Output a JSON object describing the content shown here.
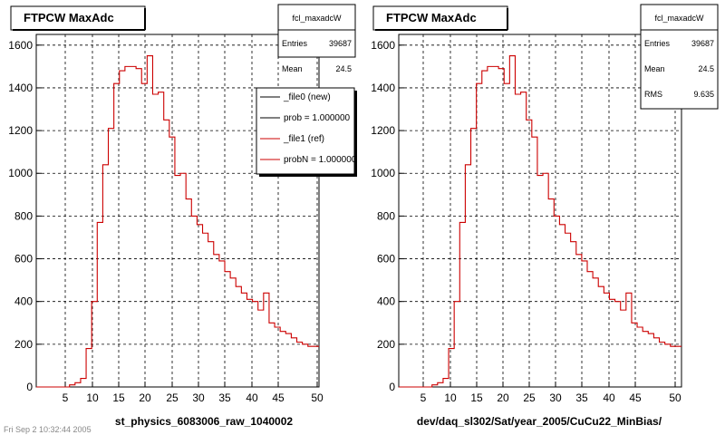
{
  "chart_data": [
    {
      "type": "histogram",
      "title": "FTPCW MaxAdc",
      "xlabel": "st_physics_6083006_raw_1040002",
      "ylabel": "",
      "xlim": [
        0,
        51
      ],
      "ylim": [
        0,
        1650
      ],
      "x_ticks": [
        5,
        10,
        15,
        20,
        25,
        30,
        35,
        40,
        45,
        50
      ],
      "y_ticks": [
        0,
        200,
        400,
        600,
        800,
        1000,
        1200,
        1400,
        1600
      ],
      "grid": true,
      "stats": {
        "name": "fcl_maxadcW",
        "rows": [
          {
            "label": "Entries",
            "value": "39687"
          },
          {
            "label": "Mean",
            "value": "24.5"
          }
        ]
      },
      "legend": {
        "placement": "right",
        "entries": [
          {
            "label": "_file0 (new)",
            "color": "#000000"
          },
          {
            "label": "prob = 1.000000",
            "color": "#000000"
          },
          {
            "label": "_file1 (ref)",
            "color": "#cc0000"
          },
          {
            "label": "probN = 1.000000",
            "color": "#cc0000"
          }
        ]
      },
      "series": [
        {
          "color": "#cc0000",
          "bin_width": 1,
          "bin_edges_start": 0,
          "values": [
            0,
            0,
            0,
            0,
            0,
            0,
            10,
            20,
            40,
            180,
            400,
            770,
            1040,
            1210,
            1420,
            1480,
            1500,
            1500,
            1490,
            1420,
            1550,
            1370,
            1380,
            1250,
            1170,
            990,
            1000,
            880,
            800,
            760,
            720,
            680,
            620,
            590,
            540,
            510,
            470,
            440,
            410,
            400,
            360,
            440,
            300,
            280,
            260,
            250,
            230,
            210,
            200,
            190,
            190
          ]
        }
      ]
    },
    {
      "type": "histogram",
      "title": "FTPCW MaxAdc",
      "xlabel": "dev/daq_sl302/Sat/year_2005/CuCu22_MinBias/",
      "ylabel": "",
      "xlim": [
        0,
        51
      ],
      "ylim": [
        0,
        1650
      ],
      "x_ticks": [
        5,
        10,
        15,
        20,
        25,
        30,
        35,
        40,
        45,
        50
      ],
      "y_ticks": [
        0,
        200,
        400,
        600,
        800,
        1000,
        1200,
        1400,
        1600
      ],
      "grid": true,
      "stats": {
        "name": "fcl_maxadcW",
        "rows": [
          {
            "label": "Entries",
            "value": "39687"
          },
          {
            "label": "Mean",
            "value": "24.5"
          },
          {
            "label": "RMS",
            "value": "9.635"
          }
        ]
      },
      "series": [
        {
          "color": "#cc0000",
          "bin_width": 1,
          "bin_edges_start": 0,
          "values": [
            0,
            0,
            0,
            0,
            0,
            0,
            10,
            20,
            40,
            180,
            400,
            770,
            1040,
            1210,
            1420,
            1480,
            1500,
            1500,
            1490,
            1420,
            1550,
            1370,
            1380,
            1250,
            1170,
            990,
            1000,
            880,
            800,
            760,
            720,
            680,
            620,
            590,
            540,
            510,
            470,
            440,
            410,
            400,
            360,
            440,
            300,
            280,
            260,
            250,
            230,
            210,
            200,
            190,
            190
          ]
        }
      ]
    }
  ],
  "footer": {
    "left_text": "Fri Sep  2 10:32:44 2005"
  }
}
